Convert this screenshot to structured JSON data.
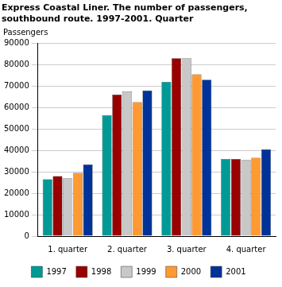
{
  "chart_data": {
    "type": "bar",
    "title": [
      "Express Coastal Liner. The number of passengers,",
      "southbound route. 1997-2001. Quarter"
    ],
    "y_label": "Passengers",
    "categories": [
      "1. quarter",
      "2. quarter",
      "3. quarter",
      "4. quarter"
    ],
    "series": [
      {
        "name": "1997",
        "color": "#009a96",
        "values": [
          26500,
          56500,
          72000,
          36000
        ]
      },
      {
        "name": "1998",
        "color": "#990000",
        "values": [
          28000,
          66000,
          83000,
          36000
        ]
      },
      {
        "name": "1999",
        "color": "#c8c8c8",
        "values": [
          27000,
          67500,
          83000,
          35500
        ]
      },
      {
        "name": "2000",
        "color": "#ff9933",
        "values": [
          29500,
          62500,
          75500,
          36500
        ]
      },
      {
        "name": "2001",
        "color": "#003399",
        "values": [
          33500,
          68000,
          73000,
          40500
        ]
      }
    ],
    "ylim": [
      0,
      90000
    ],
    "yticks": [
      0,
      10000,
      20000,
      30000,
      40000,
      50000,
      60000,
      70000,
      80000,
      90000
    ],
    "grid": true,
    "legend": "bottom"
  }
}
